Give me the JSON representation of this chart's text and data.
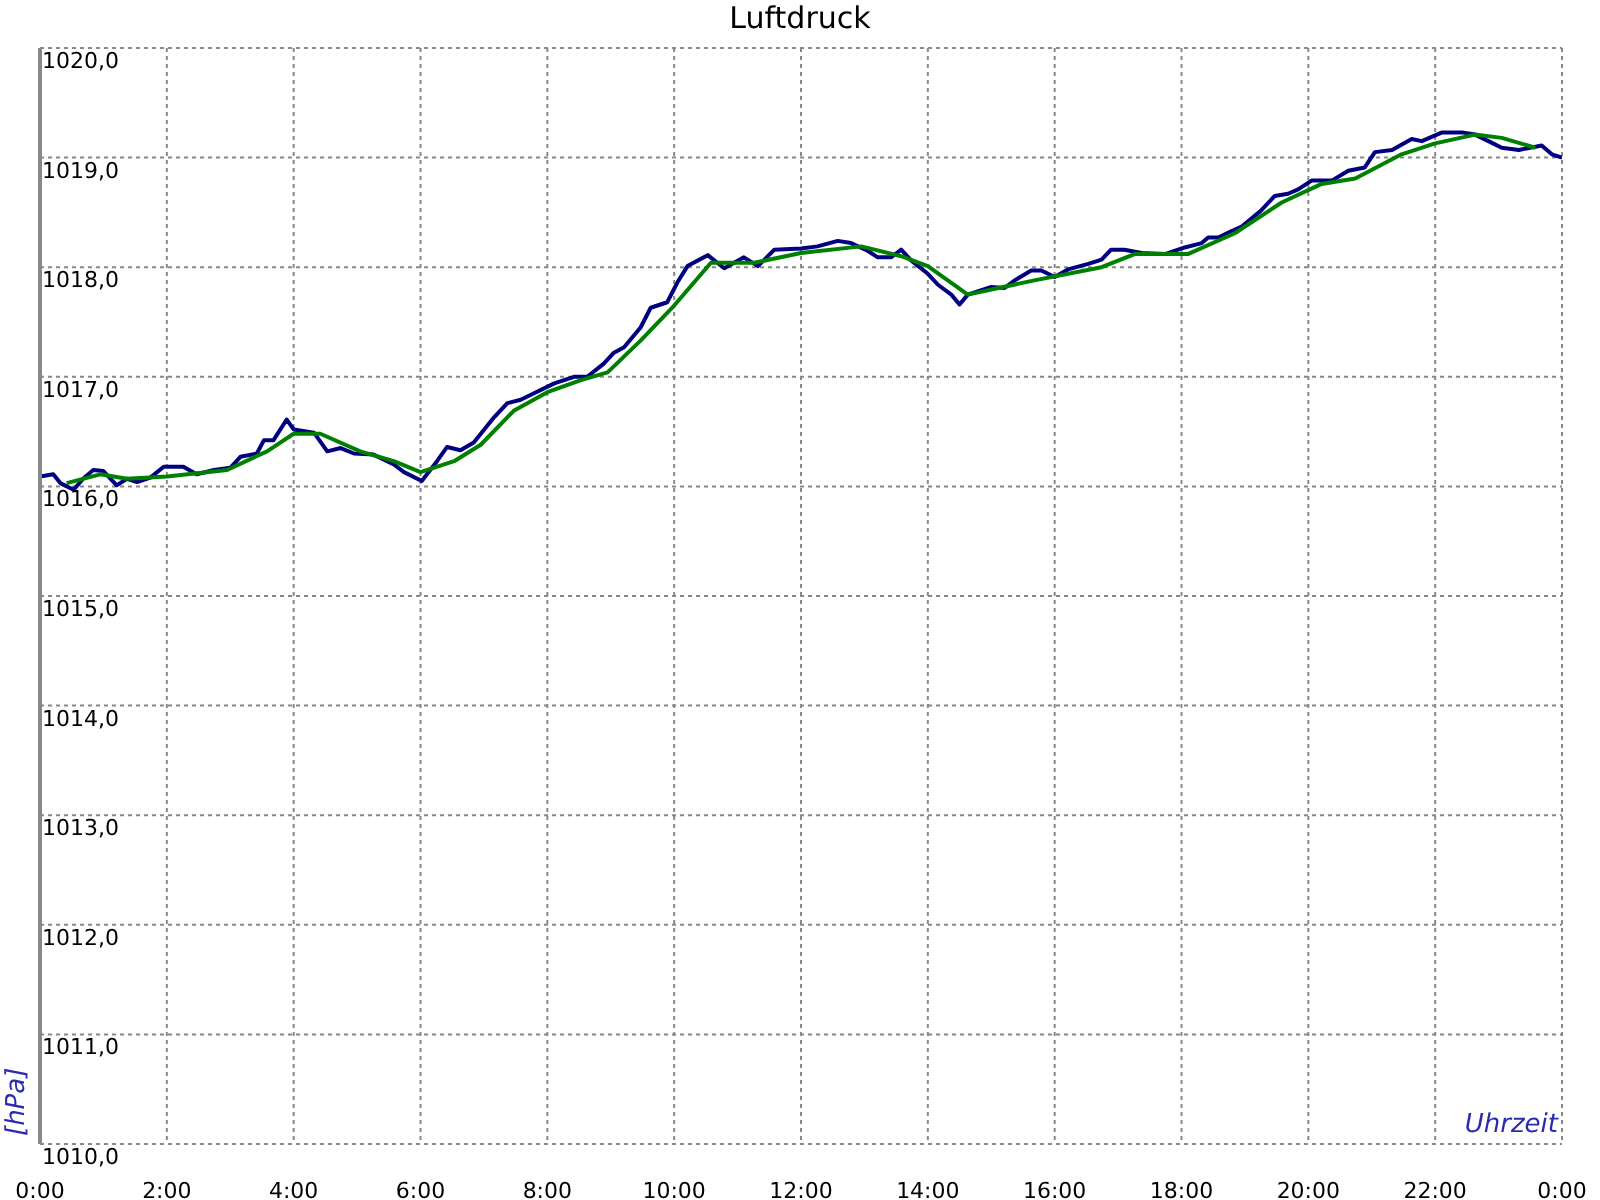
{
  "chart_data": {
    "type": "line",
    "title": "Luftdruck",
    "xlabel": "Uhrzeit",
    "ylabel": "[hPa]",
    "xlim": [
      0,
      24
    ],
    "ylim": [
      1010,
      1020
    ],
    "xticks": [
      {
        "value": 0,
        "label": "0:00"
      },
      {
        "value": 2,
        "label": "2:00"
      },
      {
        "value": 4,
        "label": "4:00"
      },
      {
        "value": 6,
        "label": "6:00"
      },
      {
        "value": 8,
        "label": "8:00"
      },
      {
        "value": 10,
        "label": "10:00"
      },
      {
        "value": 12,
        "label": "12:00"
      },
      {
        "value": 14,
        "label": "14:00"
      },
      {
        "value": 16,
        "label": "16:00"
      },
      {
        "value": 18,
        "label": "18:00"
      },
      {
        "value": 20,
        "label": "20:00"
      },
      {
        "value": 22,
        "label": "22:00"
      },
      {
        "value": 24,
        "label": "0:00"
      }
    ],
    "yticks": [
      {
        "value": 1010,
        "label": "1010,0"
      },
      {
        "value": 1011,
        "label": "1011,0"
      },
      {
        "value": 1012,
        "label": "1012,0"
      },
      {
        "value": 1013,
        "label": "1013,0"
      },
      {
        "value": 1014,
        "label": "1014,0"
      },
      {
        "value": 1015,
        "label": "1015,0"
      },
      {
        "value": 1016,
        "label": "1016,0"
      },
      {
        "value": 1017,
        "label": "1017,0"
      },
      {
        "value": 1018,
        "label": "1018,0"
      },
      {
        "value": 1019,
        "label": "1019,0"
      },
      {
        "value": 1020,
        "label": "1020,0"
      }
    ],
    "grid": true,
    "marker": "none",
    "line_style": "solid",
    "series": [
      {
        "color": "#000080",
        "x": [
          0,
          0.21,
          0.32,
          0.53,
          0.68,
          0.84,
          1.0,
          1.21,
          1.37,
          1.53,
          1.74,
          1.95,
          2.26,
          2.47,
          2.74,
          3.0,
          3.16,
          3.42,
          3.53,
          3.68,
          3.89,
          4.0,
          4.32,
          4.53,
          4.74,
          4.95,
          5.26,
          5.58,
          5.74,
          6.02,
          6.26,
          6.42,
          6.63,
          6.84,
          7.16,
          7.37,
          7.58,
          7.79,
          8.11,
          8.42,
          8.63,
          8.89,
          9.05,
          9.21,
          9.47,
          9.63,
          9.89,
          10.05,
          10.21,
          10.53,
          10.79,
          11.1,
          11.32,
          11.58,
          12.0,
          12.26,
          12.58,
          12.79,
          13.05,
          13.21,
          13.42,
          13.58,
          13.74,
          14.0,
          14.16,
          14.37,
          14.5,
          14.63,
          15.0,
          15.21,
          15.37,
          15.63,
          15.79,
          16.0,
          16.21,
          16.53,
          16.74,
          16.89,
          17.1,
          17.37,
          17.74,
          18.05,
          18.32,
          18.42,
          18.58,
          18.79,
          18.95,
          19.26,
          19.47,
          19.68,
          19.84,
          20.05,
          20.37,
          20.63,
          20.89,
          21.05,
          21.32,
          21.63,
          21.79,
          22.11,
          22.42,
          22.63,
          22.84,
          23.05,
          23.32,
          23.68,
          23.84,
          24.0
        ],
        "values": [
          1016.09,
          1016.11,
          1016.03,
          1015.97,
          1016.07,
          1016.15,
          1016.14,
          1016.01,
          1016.07,
          1016.04,
          1016.08,
          1016.18,
          1016.18,
          1016.11,
          1016.15,
          1016.17,
          1016.27,
          1016.3,
          1016.42,
          1016.42,
          1016.61,
          1016.52,
          1016.49,
          1016.32,
          1016.35,
          1016.3,
          1016.29,
          1016.2,
          1016.13,
          1016.05,
          1016.23,
          1016.36,
          1016.33,
          1016.4,
          1016.63,
          1016.76,
          1016.79,
          1016.85,
          1016.94,
          1017.0,
          1017.0,
          1017.12,
          1017.22,
          1017.27,
          1017.45,
          1017.63,
          1017.68,
          1017.86,
          1018.01,
          1018.11,
          1017.99,
          1018.09,
          1018.01,
          1018.16,
          1018.17,
          1018.19,
          1018.24,
          1018.22,
          1018.15,
          1018.09,
          1018.09,
          1018.16,
          1018.06,
          1017.94,
          1017.84,
          1017.75,
          1017.66,
          1017.75,
          1017.82,
          1017.81,
          1017.88,
          1017.97,
          1017.97,
          1017.91,
          1017.98,
          1018.03,
          1018.07,
          1018.16,
          1018.16,
          1018.13,
          1018.12,
          1018.18,
          1018.22,
          1018.27,
          1018.27,
          1018.33,
          1018.37,
          1018.52,
          1018.65,
          1018.67,
          1018.71,
          1018.79,
          1018.79,
          1018.88,
          1018.91,
          1019.05,
          1019.07,
          1019.17,
          1019.15,
          1019.23,
          1019.23,
          1019.21,
          1019.15,
          1019.09,
          1019.07,
          1019.11,
          1019.03,
          1019.0
        ]
      },
      {
        "color": "#008000",
        "x": [
          0.42,
          0.95,
          1.37,
          2.0,
          2.95,
          3.58,
          4.0,
          4.42,
          5.05,
          5.58,
          6.0,
          6.53,
          6.95,
          7.47,
          8.0,
          8.53,
          8.95,
          9.47,
          10.0,
          10.58,
          11.26,
          12.0,
          12.95,
          13.58,
          14.0,
          14.63,
          15.68,
          16.74,
          17.26,
          18.1,
          18.84,
          19.58,
          20.21,
          20.74,
          21.47,
          22.0,
          22.63,
          23.05,
          23.58
        ],
        "values": [
          1016.03,
          1016.11,
          1016.07,
          1016.09,
          1016.15,
          1016.32,
          1016.48,
          1016.48,
          1016.32,
          1016.23,
          1016.13,
          1016.23,
          1016.38,
          1016.69,
          1016.86,
          1016.97,
          1017.04,
          1017.33,
          1017.65,
          1018.04,
          1018.04,
          1018.13,
          1018.19,
          1018.1,
          1018.01,
          1017.75,
          1017.88,
          1018.0,
          1018.12,
          1018.12,
          1018.31,
          1018.59,
          1018.76,
          1018.81,
          1019.03,
          1019.13,
          1019.21,
          1019.18,
          1019.09
        ]
      }
    ]
  }
}
